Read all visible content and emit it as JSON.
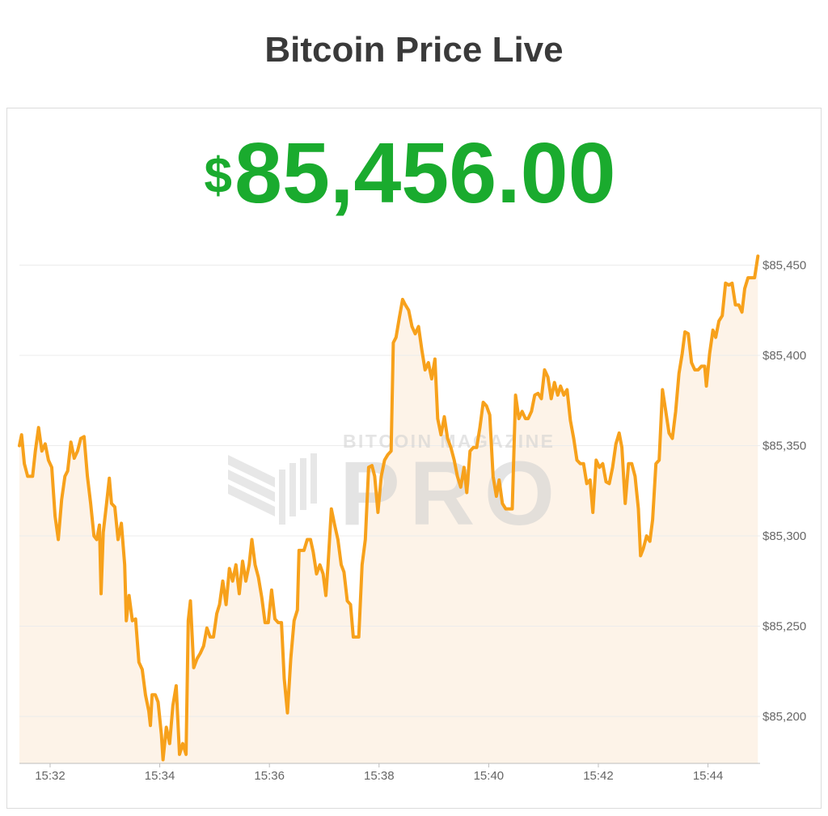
{
  "chart_data": {
    "type": "line",
    "title": "Bitcoin Price Live",
    "currency_symbol": "$",
    "price": "85,456.00",
    "watermark": {
      "top": "BITCOIN MAGAZINE",
      "bottom": "PRO"
    },
    "color": "#f7a11b",
    "area_color": "#fdf3e8",
    "price_color": "#1aab2e",
    "grid": true,
    "xlim": [
      31.44,
      44.95
    ],
    "xticks": [
      {
        "value": 32,
        "label": "15:32"
      },
      {
        "value": 34,
        "label": "15:34"
      },
      {
        "value": 36,
        "label": "15:36"
      },
      {
        "value": 38,
        "label": "15:38"
      },
      {
        "value": 40,
        "label": "15:40"
      },
      {
        "value": 42,
        "label": "15:42"
      },
      {
        "value": 44,
        "label": "15:44"
      }
    ],
    "ylim": [
      85174,
      85460
    ],
    "yticks": [
      {
        "value": 85200,
        "label": "$85,200"
      },
      {
        "value": 85250,
        "label": "$85,250"
      },
      {
        "value": 85300,
        "label": "$85,300"
      },
      {
        "value": 85350,
        "label": "$85,350"
      },
      {
        "value": 85400,
        "label": "$85,400"
      },
      {
        "value": 85450,
        "label": "$85,450"
      }
    ],
    "x": [
      31.44,
      31.48,
      31.53,
      31.59,
      31.68,
      31.73,
      31.79,
      31.85,
      31.91,
      31.97,
      32.03,
      32.09,
      32.15,
      32.21,
      32.27,
      32.32,
      32.38,
      32.44,
      32.5,
      32.56,
      32.62,
      32.68,
      32.74,
      32.8,
      32.85,
      32.9,
      32.93,
      32.97,
      33.03,
      33.08,
      33.12,
      33.18,
      33.24,
      33.3,
      33.36,
      33.39,
      33.44,
      33.5,
      33.56,
      33.62,
      33.68,
      33.74,
      33.8,
      33.83,
      33.86,
      33.92,
      33.97,
      34.03,
      34.06,
      34.12,
      34.18,
      34.24,
      34.3,
      34.36,
      34.42,
      34.48,
      34.52,
      34.56,
      34.62,
      34.68,
      34.74,
      34.8,
      34.86,
      34.92,
      34.98,
      35.04,
      35.09,
      35.15,
      35.21,
      35.27,
      35.33,
      35.39,
      35.45,
      35.51,
      35.57,
      35.63,
      35.68,
      35.74,
      35.8,
      35.86,
      35.92,
      35.98,
      36.04,
      36.1,
      36.16,
      36.22,
      36.27,
      36.33,
      36.39,
      36.45,
      36.51,
      36.54,
      36.63,
      36.69,
      36.75,
      36.8,
      36.86,
      36.92,
      36.98,
      37.03,
      37.07,
      37.13,
      37.19,
      37.25,
      37.31,
      37.36,
      37.42,
      37.48,
      37.53,
      37.63,
      37.69,
      37.75,
      37.81,
      37.87,
      37.92,
      37.98,
      38.04,
      38.1,
      38.16,
      38.22,
      38.26,
      38.31,
      38.37,
      38.43,
      38.48,
      38.54,
      38.6,
      38.66,
      38.72,
      38.78,
      38.84,
      38.9,
      38.96,
      39.02,
      39.07,
      39.13,
      39.19,
      39.25,
      39.31,
      39.37,
      39.43,
      39.49,
      39.55,
      39.6,
      39.66,
      39.72,
      39.78,
      39.84,
      39.9,
      39.96,
      40.02,
      40.08,
      40.14,
      40.19,
      40.25,
      40.31,
      40.37,
      40.43,
      40.49,
      40.55,
      40.61,
      40.67,
      40.72,
      40.78,
      40.84,
      40.9,
      40.96,
      41.02,
      41.08,
      41.14,
      41.2,
      41.26,
      41.31,
      41.37,
      41.43,
      41.49,
      41.55,
      41.61,
      41.67,
      41.73,
      41.79,
      41.85,
      41.9,
      41.96,
      42.02,
      42.08,
      42.14,
      42.2,
      42.26,
      42.32,
      42.38,
      42.43,
      42.49,
      42.55,
      42.61,
      42.67,
      42.73,
      42.77,
      42.82,
      42.88,
      42.94,
      42.99,
      43.05,
      43.11,
      43.17,
      43.23,
      43.29,
      43.35,
      43.41,
      43.47,
      43.53,
      43.58,
      43.64,
      43.7,
      43.76,
      43.82,
      43.88,
      43.94,
      43.97,
      44.03,
      44.09,
      44.14,
      44.2,
      44.26,
      44.32,
      44.38,
      44.44,
      44.5,
      44.56,
      44.62,
      44.67,
      44.73,
      44.85,
      44.91
    ],
    "values": [
      85350,
      85356,
      85340,
      85333,
      85333,
      85347,
      85360,
      85347,
      85351,
      85342,
      85338,
      85311,
      85298,
      85320,
      85333,
      85336,
      85352,
      85343,
      85347,
      85354,
      85355,
      85333,
      85318,
      85300,
      85298,
      85306,
      85268,
      85302,
      85318,
      85332,
      85318,
      85316,
      85298,
      85307,
      85284,
      85253,
      85267,
      85253,
      85254,
      85230,
      85226,
      85212,
      85203,
      85195,
      85212,
      85212,
      85208,
      85190,
      85176,
      85194,
      85185,
      85206,
      85217,
      85179,
      85185,
      85179,
      85253,
      85264,
      85227,
      85232,
      85235,
      85239,
      85249,
      85244,
      85244,
      85257,
      85262,
      85275,
      85262,
      85282,
      85275,
      85284,
      85268,
      85286,
      85275,
      85284,
      85298,
      85284,
      85277,
      85266,
      85252,
      85252,
      85270,
      85254,
      85252,
      85252,
      85221,
      85202,
      85232,
      85253,
      85259,
      85292,
      85292,
      85298,
      85298,
      85291,
      85279,
      85284,
      85279,
      85267,
      85284,
      85315,
      85306,
      85298,
      85284,
      85280,
      85264,
      85262,
      85244,
      85244,
      85284,
      85298,
      85338,
      85339,
      85333,
      85313,
      85333,
      85342,
      85345,
      85347,
      85407,
      85410,
      85421,
      85431,
      85428,
      85425,
      85416,
      85412,
      85416,
      85403,
      85392,
      85396,
      85387,
      85398,
      85365,
      85356,
      85366,
      85354,
      85349,
      85342,
      85333,
      85327,
      85338,
      85324,
      85347,
      85349,
      85349,
      85360,
      85374,
      85372,
      85367,
      85333,
      85322,
      85331,
      85318,
      85315,
      85315,
      85315,
      85378,
      85365,
      85369,
      85365,
      85365,
      85369,
      85378,
      85379,
      85376,
      85392,
      85388,
      85376,
      85385,
      85378,
      85383,
      85378,
      85381,
      85364,
      85354,
      85342,
      85340,
      85340,
      85329,
      85331,
      85313,
      85342,
      85338,
      85340,
      85330,
      85329,
      85338,
      85351,
      85357,
      85349,
      85318,
      85340,
      85340,
      85333,
      85315,
      85289,
      85293,
      85300,
      85297,
      85309,
      85340,
      85342,
      85381,
      85369,
      85357,
      85354,
      85369,
      85390,
      85401,
      85413,
      85412,
      85396,
      85392,
      85392,
      85394,
      85394,
      85383,
      85401,
      85414,
      85410,
      85419,
      85422,
      85440,
      85439,
      85440,
      85428,
      85428,
      85424,
      85437,
      85443,
      85443,
      85455
    ]
  }
}
